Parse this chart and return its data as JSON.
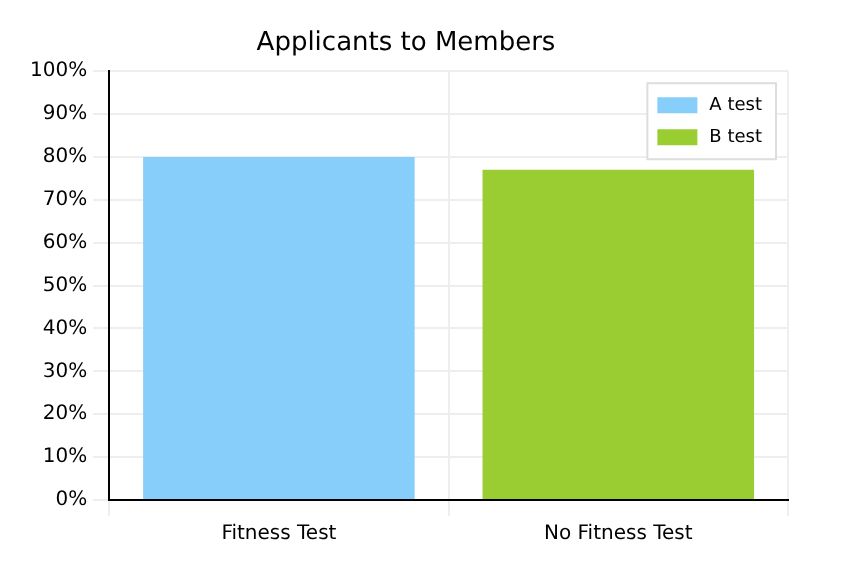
{
  "chart_data": {
    "type": "bar",
    "title": "Applicants to Members",
    "categories": [
      "Fitness Test",
      "No Fitness Test"
    ],
    "series": [
      {
        "name": "A test",
        "color": "#87cefa",
        "values": [
          80,
          null
        ]
      },
      {
        "name": "B test",
        "color": "#9acd32",
        "values": [
          null,
          77
        ]
      }
    ],
    "ylim": [
      0,
      100
    ],
    "yticks": [
      {
        "value": 0,
        "label": "0%"
      },
      {
        "value": 10,
        "label": "10%"
      },
      {
        "value": 20,
        "label": "20%"
      },
      {
        "value": 30,
        "label": "30%"
      },
      {
        "value": 40,
        "label": "40%"
      },
      {
        "value": 50,
        "label": "50%"
      },
      {
        "value": 60,
        "label": "60%"
      },
      {
        "value": 70,
        "label": "70%"
      },
      {
        "value": 80,
        "label": "80%"
      },
      {
        "value": 90,
        "label": "90%"
      },
      {
        "value": 100,
        "label": "100%"
      }
    ],
    "grid": true,
    "legend": "top right"
  }
}
